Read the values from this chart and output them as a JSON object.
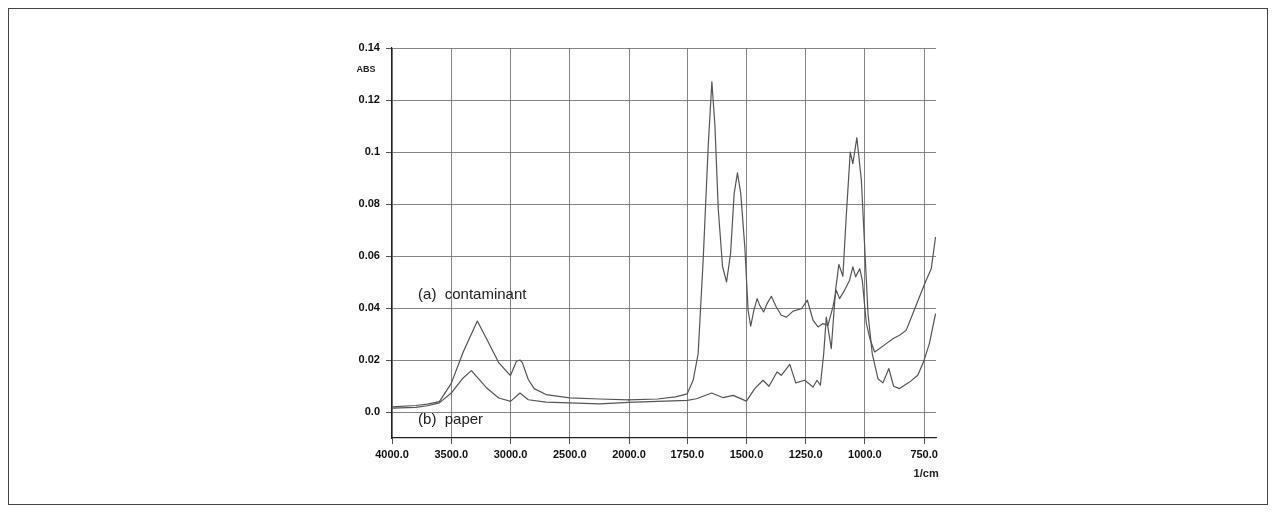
{
  "chart_data": [
    {
      "type": "line",
      "ylabel": "ABS",
      "xlim": [
        4000,
        2000
      ],
      "xticks": [
        {
          "value": 4000,
          "label": "4000.0"
        },
        {
          "value": 3500,
          "label": "3500.0"
        },
        {
          "value": 3000,
          "label": "3000.0"
        },
        {
          "value": 2500,
          "label": "2500.0"
        },
        {
          "value": 2000,
          "label": "2000.0"
        }
      ],
      "ylim": [
        -0.01,
        0.14
      ],
      "yticks": [
        {
          "value": 0,
          "label": "0.0"
        },
        0.02,
        0.04,
        0.06,
        0.08,
        0.1,
        0.12,
        0.14
      ],
      "grid": true,
      "line_style": "solid",
      "series": [
        {
          "name": "(a)  contaminant",
          "color": "#555555",
          "x": [
            4000,
            3800,
            3700,
            3600,
            3500,
            3400,
            3280,
            3200,
            3100,
            3000,
            2950,
            2920,
            2900,
            2850,
            2800,
            2700,
            2500,
            2250,
            2000
          ],
          "values": [
            0.002,
            0.0025,
            0.003,
            0.004,
            0.011,
            0.023,
            0.035,
            0.028,
            0.019,
            0.014,
            0.0195,
            0.02,
            0.019,
            0.0125,
            0.009,
            0.0067,
            0.0054,
            0.005,
            0.0047
          ]
        },
        {
          "name": "(b)  paper",
          "color": "#555555",
          "x": [
            4000,
            3800,
            3700,
            3600,
            3500,
            3400,
            3330,
            3200,
            3100,
            3000,
            2920,
            2850,
            2700,
            2500,
            2250,
            2000
          ],
          "values": [
            0.0015,
            0.0018,
            0.0024,
            0.0035,
            0.0073,
            0.0131,
            0.0159,
            0.0092,
            0.0054,
            0.0041,
            0.0073,
            0.0047,
            0.0038,
            0.0035,
            0.0031,
            0.0037
          ]
        }
      ]
    },
    {
      "type": "line",
      "xlabel": "1/cm",
      "xlim": [
        2000,
        700
      ],
      "xticks": [
        {
          "value": 1750,
          "label": "1750.0"
        },
        {
          "value": 1500,
          "label": "1500.0"
        },
        {
          "value": 1250,
          "label": "1250.0"
        },
        {
          "value": 1000,
          "label": "1000.0"
        },
        {
          "value": 750,
          "label": "750.0"
        }
      ],
      "ylim": [
        -0.01,
        0.14
      ],
      "yticks": [
        0,
        0.02,
        0.04,
        0.06,
        0.08,
        0.1,
        0.12,
        0.14
      ],
      "tick_labels": "x",
      "grid": true,
      "line_style": "solid",
      "series": [
        {
          "color": "#555555",
          "x": [
            2000,
            1875,
            1800,
            1750,
            1725,
            1704,
            1683,
            1661,
            1646,
            1633,
            1619,
            1601,
            1584,
            1567,
            1552,
            1538,
            1524,
            1507,
            1493,
            1482,
            1469,
            1455,
            1444,
            1427,
            1413,
            1395,
            1374,
            1353,
            1331,
            1303,
            1268,
            1243,
            1219,
            1198,
            1177,
            1156,
            1135,
            1121,
            1107,
            1086,
            1065,
            1051,
            1039,
            1022,
            1011,
            994,
            977,
            959,
            938,
            910,
            882,
            854,
            826,
            798,
            770,
            742,
            720,
            702
          ],
          "values": [
            0.0047,
            0.005,
            0.0058,
            0.007,
            0.0122,
            0.0224,
            0.058,
            0.103,
            0.127,
            0.11,
            0.078,
            0.056,
            0.05,
            0.061,
            0.084,
            0.092,
            0.084,
            0.0635,
            0.039,
            0.033,
            0.039,
            0.0436,
            0.041,
            0.0385,
            0.0417,
            0.0445,
            0.0404,
            0.0372,
            0.0365,
            0.0388,
            0.0397,
            0.043,
            0.0353,
            0.0327,
            0.034,
            0.0333,
            0.0404,
            0.0468,
            0.0436,
            0.0468,
            0.0506,
            0.0558,
            0.052,
            0.0551,
            0.0506,
            0.034,
            0.0276,
            0.0231,
            0.0244,
            0.0263,
            0.0282,
            0.0295,
            0.0314,
            0.0378,
            0.0442,
            0.0506,
            0.0551,
            0.0673
          ]
        },
        {
          "color": "#555555",
          "x": [
            2000,
            1750,
            1711,
            1647,
            1598,
            1556,
            1500,
            1465,
            1430,
            1405,
            1371,
            1353,
            1317,
            1292,
            1254,
            1219,
            1202,
            1188,
            1174,
            1163,
            1142,
            1124,
            1110,
            1093,
            1079,
            1062,
            1051,
            1034,
            1015,
            1001,
            987,
            969,
            945,
            924,
            899,
            879,
            854,
            812,
            777,
            753,
            728,
            702
          ],
          "values": [
            0.0037,
            0.0045,
            0.0051,
            0.0073,
            0.0055,
            0.0064,
            0.0042,
            0.009,
            0.0122,
            0.0099,
            0.0154,
            0.0141,
            0.0183,
            0.0112,
            0.0122,
            0.0096,
            0.0122,
            0.0103,
            0.0224,
            0.0365,
            0.0244,
            0.0468,
            0.0568,
            0.0522,
            0.075,
            0.1,
            0.0955,
            0.1055,
            0.0891,
            0.0635,
            0.0378,
            0.0224,
            0.0128,
            0.0112,
            0.0167,
            0.0099,
            0.009,
            0.0115,
            0.0141,
            0.0192,
            0.0263,
            0.0378
          ]
        }
      ]
    }
  ]
}
